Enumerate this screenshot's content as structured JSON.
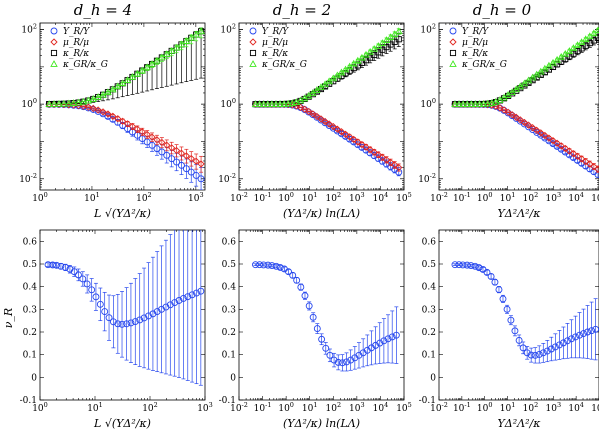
{
  "figure": {
    "col_titles": [
      "d_h = 4",
      "d_h = 2",
      "d_h = 0"
    ],
    "top_xlabels": [
      "L √(YΔ²/κ)",
      "(YΔ²/κ) ln(LΛ)",
      "YΔ²Λ²/κ"
    ],
    "bottom_xlabels": [
      "L √(YΔ²/κ)",
      "(YΔ²/κ) ln(LΛ)",
      "YΔ²Λ²/κ"
    ],
    "bottom_ylabel": "ν_R"
  },
  "colors": {
    "blue": "#2546ee",
    "red": "#e0241e",
    "black": "#000000",
    "green": "#3fe81f"
  },
  "chart_data": [
    {
      "panel": "top-left",
      "type": "scatter",
      "title": "d_h = 4",
      "xlabel": "L √(YΔ²/κ)",
      "ylabel": "",
      "xscale": "log",
      "yscale": "log",
      "xlim": [
        1,
        1500
      ],
      "ylim": [
        0.005,
        150
      ],
      "xticks": [
        1,
        10,
        100,
        1000
      ],
      "xtick_labels": [
        "10^0",
        "10^1",
        "10^2",
        "10^3"
      ],
      "yticks": [
        0.01,
        1,
        100
      ],
      "ytick_labels": [
        "10^-2",
        "10^0",
        "10^2"
      ],
      "legend": {
        "position": "top-left",
        "entries": [
          "Y_R/Y",
          "μ_R/μ",
          "κ_R/κ",
          "κ_GR/κ_G"
        ]
      },
      "series": [
        {
          "name": "Y_R/Y",
          "color": "blue",
          "marker": "circle",
          "x_range": [
            1.5,
            1260
          ],
          "n": 32,
          "y_start": 1.0,
          "y_end": 0.01,
          "bend_x": 10,
          "err_lo_end": 0.005,
          "err_hi_end": 0.02,
          "errors_below": true
        },
        {
          "name": "μ_R/μ",
          "color": "red",
          "marker": "diamond",
          "x_range": [
            1.5,
            1260
          ],
          "n": 32,
          "y_start": 1.0,
          "y_end": 0.025,
          "bend_x": 10,
          "err_lo_end": 0.015,
          "err_hi_end": 0.04
        },
        {
          "name": "κ_R/κ",
          "color": "black",
          "marker": "square",
          "x_range": [
            1.5,
            1260
          ],
          "n": 32,
          "y_start": 1.0,
          "y_end": 90,
          "bend_x": 10,
          "err_lo_end": 5,
          "err_hi_end": 110,
          "errors_below": true
        },
        {
          "name": "κ_GR/κ_G",
          "color": "green",
          "marker": "triangle",
          "x_range": [
            1.5,
            1260
          ],
          "n": 32,
          "y_start": 1.0,
          "y_end": 90,
          "bend_x": 10,
          "err_lo_end": 60,
          "err_hi_end": 110
        }
      ]
    },
    {
      "panel": "top-middle",
      "type": "scatter",
      "title": "d_h = 2",
      "xlabel": "(YΔ²/κ) ln(LΛ)",
      "ylabel": "",
      "xscale": "log",
      "yscale": "log",
      "xlim": [
        0.01,
        100000
      ],
      "ylim": [
        0.005,
        150
      ],
      "xticks": [
        0.01,
        0.1,
        1,
        10,
        100,
        1000,
        10000,
        100000
      ],
      "xtick_labels": [
        "10^-2",
        "10^-1",
        "10^0",
        "10^1",
        "10^2",
        "10^3",
        "10^4",
        "10^5"
      ],
      "yticks": [
        0.01,
        1,
        100
      ],
      "ytick_labels": [
        "10^-2",
        "10^0",
        "10^2"
      ],
      "legend": {
        "position": "top-left",
        "entries": [
          "Y_R/Y",
          "μ_R/μ",
          "κ_R/κ",
          "κ_GR/κ_G"
        ]
      },
      "series": [
        {
          "name": "Y_R/Y",
          "color": "blue",
          "marker": "circle",
          "x_range": [
            0.05,
            60000
          ],
          "n": 36,
          "y_start": 1.0,
          "y_end": 0.015,
          "bend_x": 3,
          "err_lo_end": 0.012,
          "err_hi_end": 0.02
        },
        {
          "name": "μ_R/μ",
          "color": "red",
          "marker": "diamond",
          "x_range": [
            0.05,
            60000
          ],
          "n": 36,
          "y_start": 1.0,
          "y_end": 0.02,
          "bend_x": 3,
          "err_lo_end": 0.016,
          "err_hi_end": 0.025
        },
        {
          "name": "κ_R/κ",
          "color": "black",
          "marker": "square",
          "x_range": [
            0.05,
            60000
          ],
          "n": 36,
          "y_start": 1.0,
          "y_end": 55,
          "bend_x": 3,
          "err_lo_end": 35,
          "err_hi_end": 80
        },
        {
          "name": "κ_GR/κ_G",
          "color": "green",
          "marker": "triangle",
          "x_range": [
            0.05,
            60000
          ],
          "n": 36,
          "y_start": 1.0,
          "y_end": 90,
          "bend_x": 3,
          "err_lo_end": 75,
          "err_hi_end": 105
        }
      ]
    },
    {
      "panel": "top-right",
      "type": "scatter",
      "title": "d_h = 0",
      "xlabel": "YΔ²Λ²/κ",
      "ylabel": "",
      "xscale": "log",
      "yscale": "log",
      "xlim": [
        0.01,
        100000
      ],
      "ylim": [
        0.005,
        150
      ],
      "xticks": [
        0.01,
        0.1,
        1,
        10,
        100,
        1000,
        10000,
        100000
      ],
      "xtick_labels": [
        "10^-2",
        "10^-1",
        "10^0",
        "10^1",
        "10^2",
        "10^3",
        "10^4",
        "10^5"
      ],
      "yticks": [
        0.01,
        1,
        100
      ],
      "ytick_labels": [
        "10^-2",
        "10^0",
        "10^2"
      ],
      "legend": {
        "position": "top-left",
        "entries": [
          "Y_R/Y",
          "μ_R/μ",
          "κ_R/κ",
          "κ_GR/κ_G"
        ]
      },
      "series": [
        {
          "name": "Y_R/Y",
          "color": "blue",
          "marker": "circle",
          "x_range": [
            0.05,
            90000
          ],
          "n": 36,
          "y_start": 1.0,
          "y_end": 0.013,
          "bend_x": 3,
          "err_lo_end": 0.011,
          "err_hi_end": 0.016
        },
        {
          "name": "μ_R/μ",
          "color": "red",
          "marker": "diamond",
          "x_range": [
            0.05,
            90000
          ],
          "n": 36,
          "y_start": 1.0,
          "y_end": 0.018,
          "bend_x": 3,
          "err_lo_end": 0.015,
          "err_hi_end": 0.022
        },
        {
          "name": "κ_R/κ",
          "color": "black",
          "marker": "square",
          "x_range": [
            0.05,
            90000
          ],
          "n": 36,
          "y_start": 1.0,
          "y_end": 60,
          "bend_x": 3,
          "err_lo_end": 45,
          "err_hi_end": 75
        },
        {
          "name": "κ_GR/κ_G",
          "color": "green",
          "marker": "triangle",
          "x_range": [
            0.05,
            90000
          ],
          "n": 36,
          "y_start": 1.0,
          "y_end": 95,
          "bend_x": 3,
          "err_lo_end": 85,
          "err_hi_end": 105
        }
      ]
    },
    {
      "panel": "bottom-left",
      "type": "scatter",
      "title": "",
      "xlabel": "L √(YΔ²/κ)",
      "ylabel": "ν_R",
      "xscale": "log",
      "yscale": "linear",
      "xlim": [
        1,
        1000
      ],
      "ylim": [
        -0.1,
        0.65
      ],
      "xticks": [
        1,
        10,
        100,
        1000
      ],
      "xtick_labels": [
        "10^0",
        "10^1",
        "10^2",
        "10^3"
      ],
      "yticks": [
        -0.1,
        0,
        0.1,
        0.2,
        0.3,
        0.4,
        0.5,
        0.6
      ],
      "ytick_labels": [
        "-0.1",
        "0",
        "0.1",
        "0.2",
        "0.3",
        "0.4",
        "0.5",
        "0.6"
      ],
      "series": [
        {
          "name": "",
          "color": "blue",
          "marker": "circle",
          "x": [
            1.4,
            1.7,
            2.0,
            2.4,
            2.9,
            3.5,
            4.2,
            5.0,
            6.0,
            7.2,
            8.7,
            10.4,
            12.5,
            15,
            18,
            21.6,
            26,
            31,
            37.5,
            45,
            54,
            65,
            78,
            94,
            113,
            135,
            162,
            195,
            234,
            281,
            337,
            405,
            486,
            583,
            700,
            840
          ],
          "y": [
            0.497,
            0.496,
            0.494,
            0.49,
            0.485,
            0.477,
            0.466,
            0.452,
            0.434,
            0.412,
            0.386,
            0.355,
            0.322,
            0.29,
            0.263,
            0.245,
            0.236,
            0.234,
            0.236,
            0.24,
            0.246,
            0.253,
            0.262,
            0.271,
            0.28,
            0.29,
            0.3,
            0.31,
            0.32,
            0.33,
            0.339,
            0.348,
            0.356,
            0.364,
            0.372,
            0.38
          ],
          "err": [
            0.008,
            0.009,
            0.01,
            0.012,
            0.014,
            0.017,
            0.021,
            0.026,
            0.032,
            0.04,
            0.05,
            0.06,
            0.072,
            0.085,
            0.1,
            0.115,
            0.13,
            0.145,
            0.16,
            0.175,
            0.19,
            0.205,
            0.22,
            0.235,
            0.25,
            0.265,
            0.28,
            0.295,
            0.31,
            0.325,
            0.34,
            0.355,
            0.37,
            0.385,
            0.4,
            0.415
          ]
        }
      ]
    },
    {
      "panel": "bottom-middle",
      "type": "scatter",
      "title": "",
      "xlabel": "(YΔ²/κ) ln(LΛ)",
      "ylabel": "",
      "xscale": "log",
      "yscale": "linear",
      "xlim": [
        0.01,
        100000
      ],
      "ylim": [
        -0.1,
        0.65
      ],
      "xticks": [
        0.01,
        0.1,
        1,
        10,
        100,
        1000,
        10000,
        100000
      ],
      "xtick_labels": [
        "10^-2",
        "10^-1",
        "10^0",
        "10^1",
        "10^2",
        "10^3",
        "10^4",
        "10^5"
      ],
      "yticks": [
        -0.1,
        0,
        0.1,
        0.2,
        0.3,
        0.4,
        0.5,
        0.6
      ],
      "ytick_labels": [
        "-0.1",
        "0",
        "0.1",
        "0.2",
        "0.3",
        "0.4",
        "0.5",
        "0.6"
      ],
      "series": [
        {
          "name": "",
          "color": "blue",
          "marker": "circle",
          "x": [
            0.05,
            0.075,
            0.11,
            0.17,
            0.25,
            0.38,
            0.56,
            0.84,
            1.26,
            1.9,
            2.8,
            4.2,
            6.3,
            9.5,
            14,
            21,
            32,
            48,
            72,
            108,
            162,
            243,
            365,
            547,
            820,
            1230,
            1850,
            2770,
            4160,
            6240,
            9360,
            14000,
            21000,
            31600,
            47400
          ],
          "y": [
            0.497,
            0.497,
            0.496,
            0.495,
            0.493,
            0.49,
            0.485,
            0.478,
            0.466,
            0.45,
            0.428,
            0.398,
            0.36,
            0.315,
            0.265,
            0.215,
            0.168,
            0.128,
            0.097,
            0.076,
            0.066,
            0.064,
            0.068,
            0.076,
            0.086,
            0.097,
            0.108,
            0.119,
            0.13,
            0.141,
            0.151,
            0.161,
            0.17,
            0.178,
            0.186
          ],
          "err": [
            0.004,
            0.004,
            0.005,
            0.005,
            0.006,
            0.007,
            0.008,
            0.009,
            0.01,
            0.011,
            0.012,
            0.014,
            0.016,
            0.018,
            0.02,
            0.022,
            0.024,
            0.026,
            0.028,
            0.03,
            0.033,
            0.036,
            0.04,
            0.045,
            0.05,
            0.056,
            0.062,
            0.068,
            0.075,
            0.082,
            0.09,
            0.098,
            0.106,
            0.115,
            0.125
          ]
        }
      ]
    },
    {
      "panel": "bottom-right",
      "type": "scatter",
      "title": "",
      "xlabel": "YΔ²Λ²/κ",
      "ylabel": "",
      "xscale": "log",
      "yscale": "linear",
      "xlim": [
        0.01,
        100000
      ],
      "ylim": [
        -0.1,
        0.65
      ],
      "xticks": [
        0.01,
        0.1,
        1,
        10,
        100,
        1000,
        10000,
        100000
      ],
      "xtick_labels": [
        "10^-2",
        "10^-1",
        "10^0",
        "10^1",
        "10^2",
        "10^3",
        "10^4",
        "10^5"
      ],
      "yticks": [
        -0.1,
        0,
        0.1,
        0.2,
        0.3,
        0.4,
        0.5,
        0.6
      ],
      "ytick_labels": [
        "-0.1",
        "0",
        "0.1",
        "0.2",
        "0.3",
        "0.4",
        "0.5",
        "0.6"
      ],
      "series": [
        {
          "name": "",
          "color": "blue",
          "marker": "circle",
          "x": [
            0.05,
            0.075,
            0.11,
            0.17,
            0.25,
            0.38,
            0.56,
            0.84,
            1.26,
            1.9,
            2.8,
            4.2,
            6.3,
            9.5,
            14,
            21,
            32,
            48,
            72,
            108,
            162,
            243,
            365,
            547,
            820,
            1230,
            1850,
            2770,
            4160,
            6240,
            9360,
            14000,
            21000,
            31600,
            47400,
            71000
          ],
          "y": [
            0.497,
            0.497,
            0.496,
            0.495,
            0.493,
            0.49,
            0.484,
            0.476,
            0.463,
            0.445,
            0.42,
            0.387,
            0.346,
            0.3,
            0.252,
            0.205,
            0.163,
            0.13,
            0.108,
            0.098,
            0.097,
            0.101,
            0.108,
            0.116,
            0.125,
            0.134,
            0.143,
            0.152,
            0.161,
            0.17,
            0.178,
            0.186,
            0.193,
            0.2,
            0.206,
            0.212
          ],
          "err": [
            0.004,
            0.004,
            0.005,
            0.005,
            0.006,
            0.007,
            0.008,
            0.009,
            0.01,
            0.011,
            0.012,
            0.014,
            0.016,
            0.018,
            0.02,
            0.022,
            0.024,
            0.026,
            0.028,
            0.031,
            0.034,
            0.038,
            0.042,
            0.047,
            0.052,
            0.058,
            0.064,
            0.07,
            0.077,
            0.084,
            0.092,
            0.1,
            0.108,
            0.117,
            0.126,
            0.135
          ]
        }
      ]
    }
  ]
}
